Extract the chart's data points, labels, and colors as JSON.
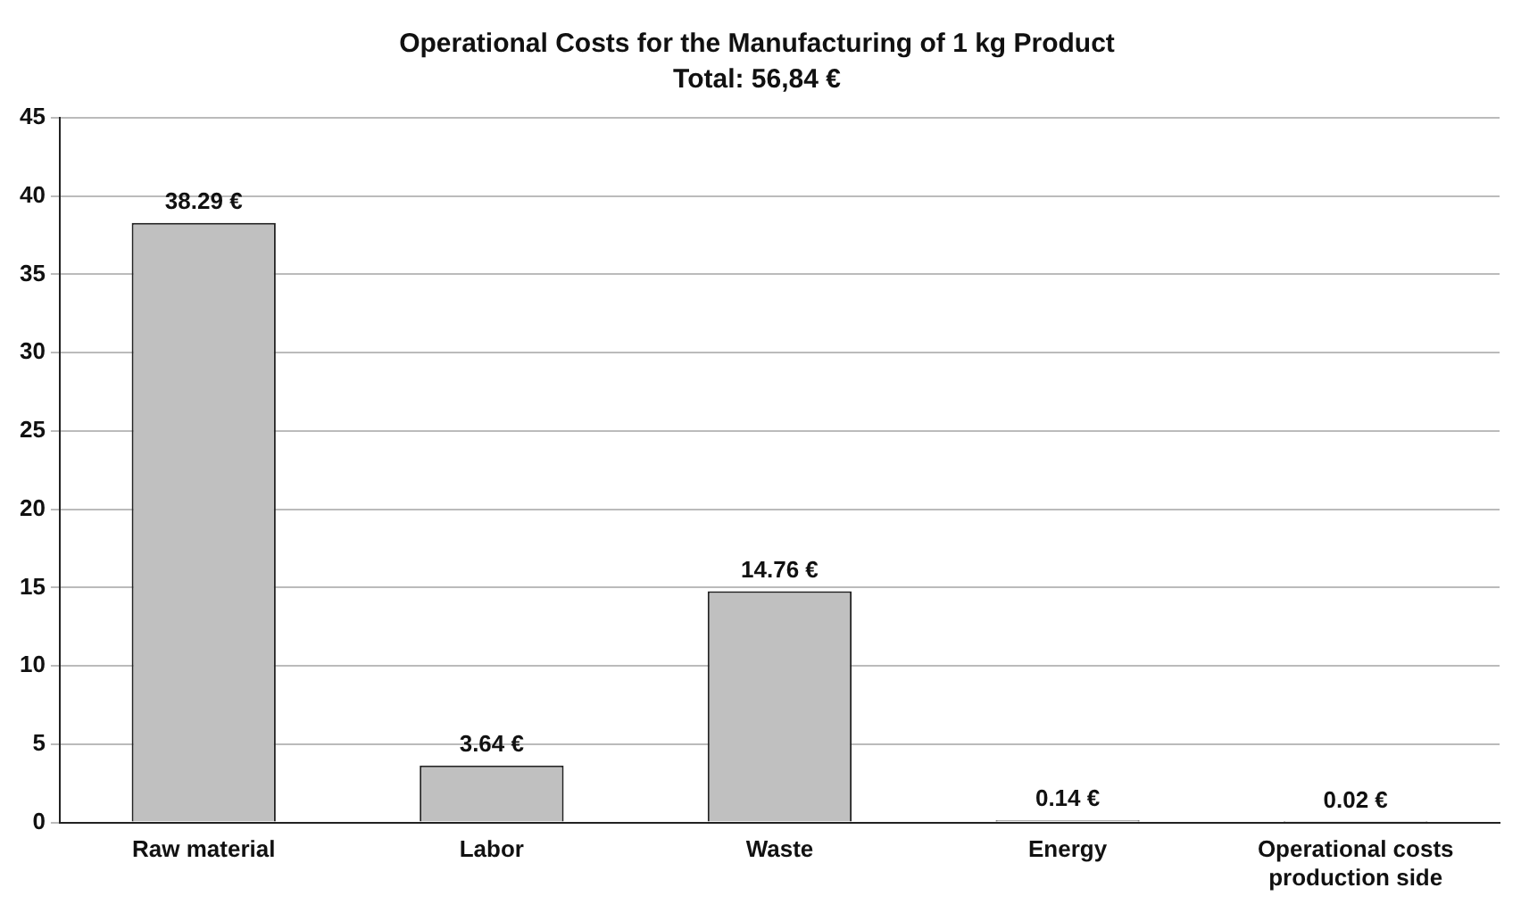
{
  "chart_data": {
    "type": "bar",
    "title": "Operational Costs for the Manufacturing of 1 kg Product",
    "subtitle": "Total: 56,84 €",
    "categories": [
      "Raw material",
      "Labor",
      "Waste",
      "Energy",
      "Operational costs production side"
    ],
    "values": [
      38.29,
      3.64,
      14.76,
      0.14,
      0.02
    ],
    "value_labels": [
      "38.29 €",
      "3.64 €",
      "14.76 €",
      "0.14 €",
      "0.02 €"
    ],
    "color": "#c0c0c0",
    "ylim": [
      0,
      45
    ],
    "yticks": [
      0,
      5,
      10,
      15,
      20,
      25,
      30,
      35,
      40,
      45
    ],
    "grid": "y"
  }
}
